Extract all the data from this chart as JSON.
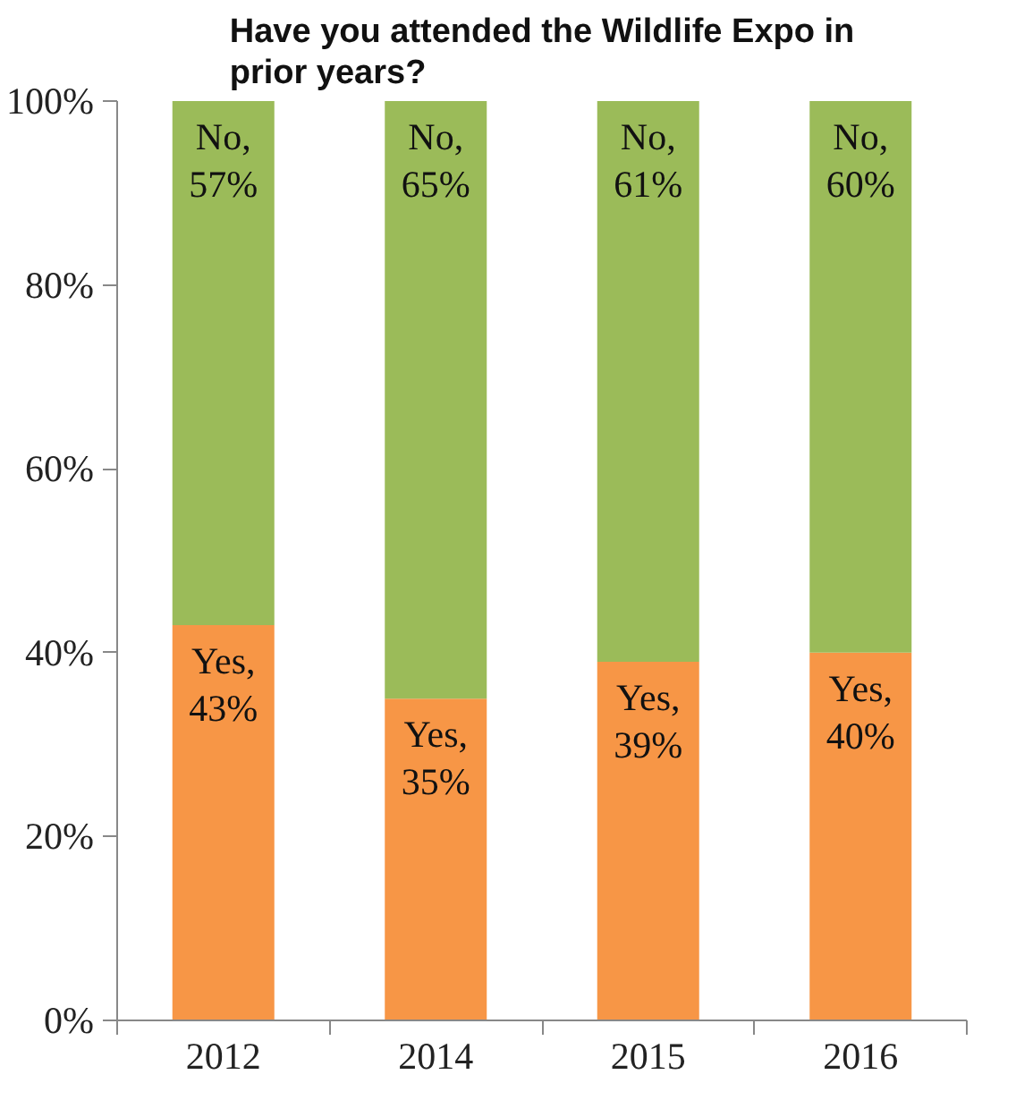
{
  "chart_data": {
    "type": "bar",
    "stacked": true,
    "title": "Have you attended the Wildlife Expo in prior years?",
    "categories": [
      "2012",
      "2014",
      "2015",
      "2016"
    ],
    "series": [
      {
        "name": "Yes,",
        "color": "#f79646",
        "values": [
          43,
          35,
          39,
          40
        ],
        "value_labels": [
          "43%",
          "35%",
          "39%",
          "40%"
        ]
      },
      {
        "name": "No,",
        "color": "#9bbb59",
        "values": [
          57,
          65,
          61,
          60
        ],
        "value_labels": [
          "57%",
          "65%",
          "61%",
          "60%"
        ]
      }
    ],
    "ylim": [
      0,
      100
    ],
    "yticks": [
      {
        "value": 0,
        "label": "0%"
      },
      {
        "value": 20,
        "label": "20%"
      },
      {
        "value": 40,
        "label": "40%"
      },
      {
        "value": 60,
        "label": "60%"
      },
      {
        "value": 80,
        "label": "80%"
      },
      {
        "value": 100,
        "label": "100%"
      }
    ],
    "grid": false
  }
}
